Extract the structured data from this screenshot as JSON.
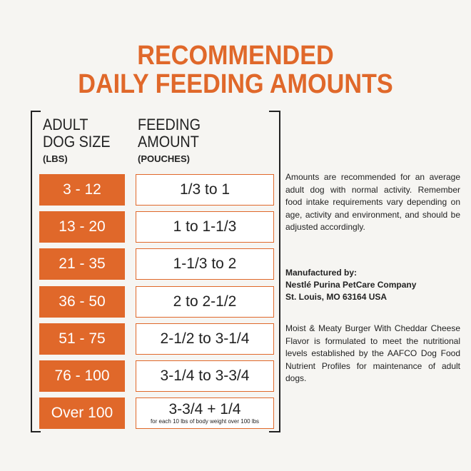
{
  "header": {
    "title_lines": [
      "RECOMMENDED",
      "DAILY FEEDING AMOUNTS"
    ]
  },
  "table": {
    "columns": [
      {
        "lines": [
          "ADULT",
          "DOG SIZE"
        ],
        "unit": "(LBS)"
      },
      {
        "lines": [
          "FEEDING",
          "AMOUNT"
        ],
        "unit": "(POUCHES)"
      }
    ],
    "rows": [
      [
        "3 - 12",
        "1/3 to 1"
      ],
      [
        "13 - 20",
        "1 to 1-1/3"
      ],
      [
        "21 - 35",
        "1-1/3 to 2"
      ],
      [
        "36 - 50",
        "2 to 2-1/2"
      ],
      [
        "51 - 75",
        "2-1/2 to 3-1/4"
      ],
      [
        "76 - 100",
        "3-1/4 to 3-3/4"
      ],
      [
        "Over 100",
        "3-3/4 + 1/4",
        "for each 10 lbs of body weight over 100 lbs"
      ]
    ]
  },
  "notes": {
    "intro": "Amounts are recommended for an average adult dog with normal activity. Remember food intake requirements vary depending on age, activity and environment, and should be adjusted accordingly.",
    "manufacturer": [
      "Manufactured by:",
      "Nestlé Purina PetCare Company",
      "St. Louis, MO 63164 USA"
    ],
    "formulation": "Moist & Meaty Burger With Cheddar Cheese Flavor is formulated to meet the nutritional levels established by the AAFCO Dog Food Nutrient Profiles for maintenance of adult dogs."
  }
}
